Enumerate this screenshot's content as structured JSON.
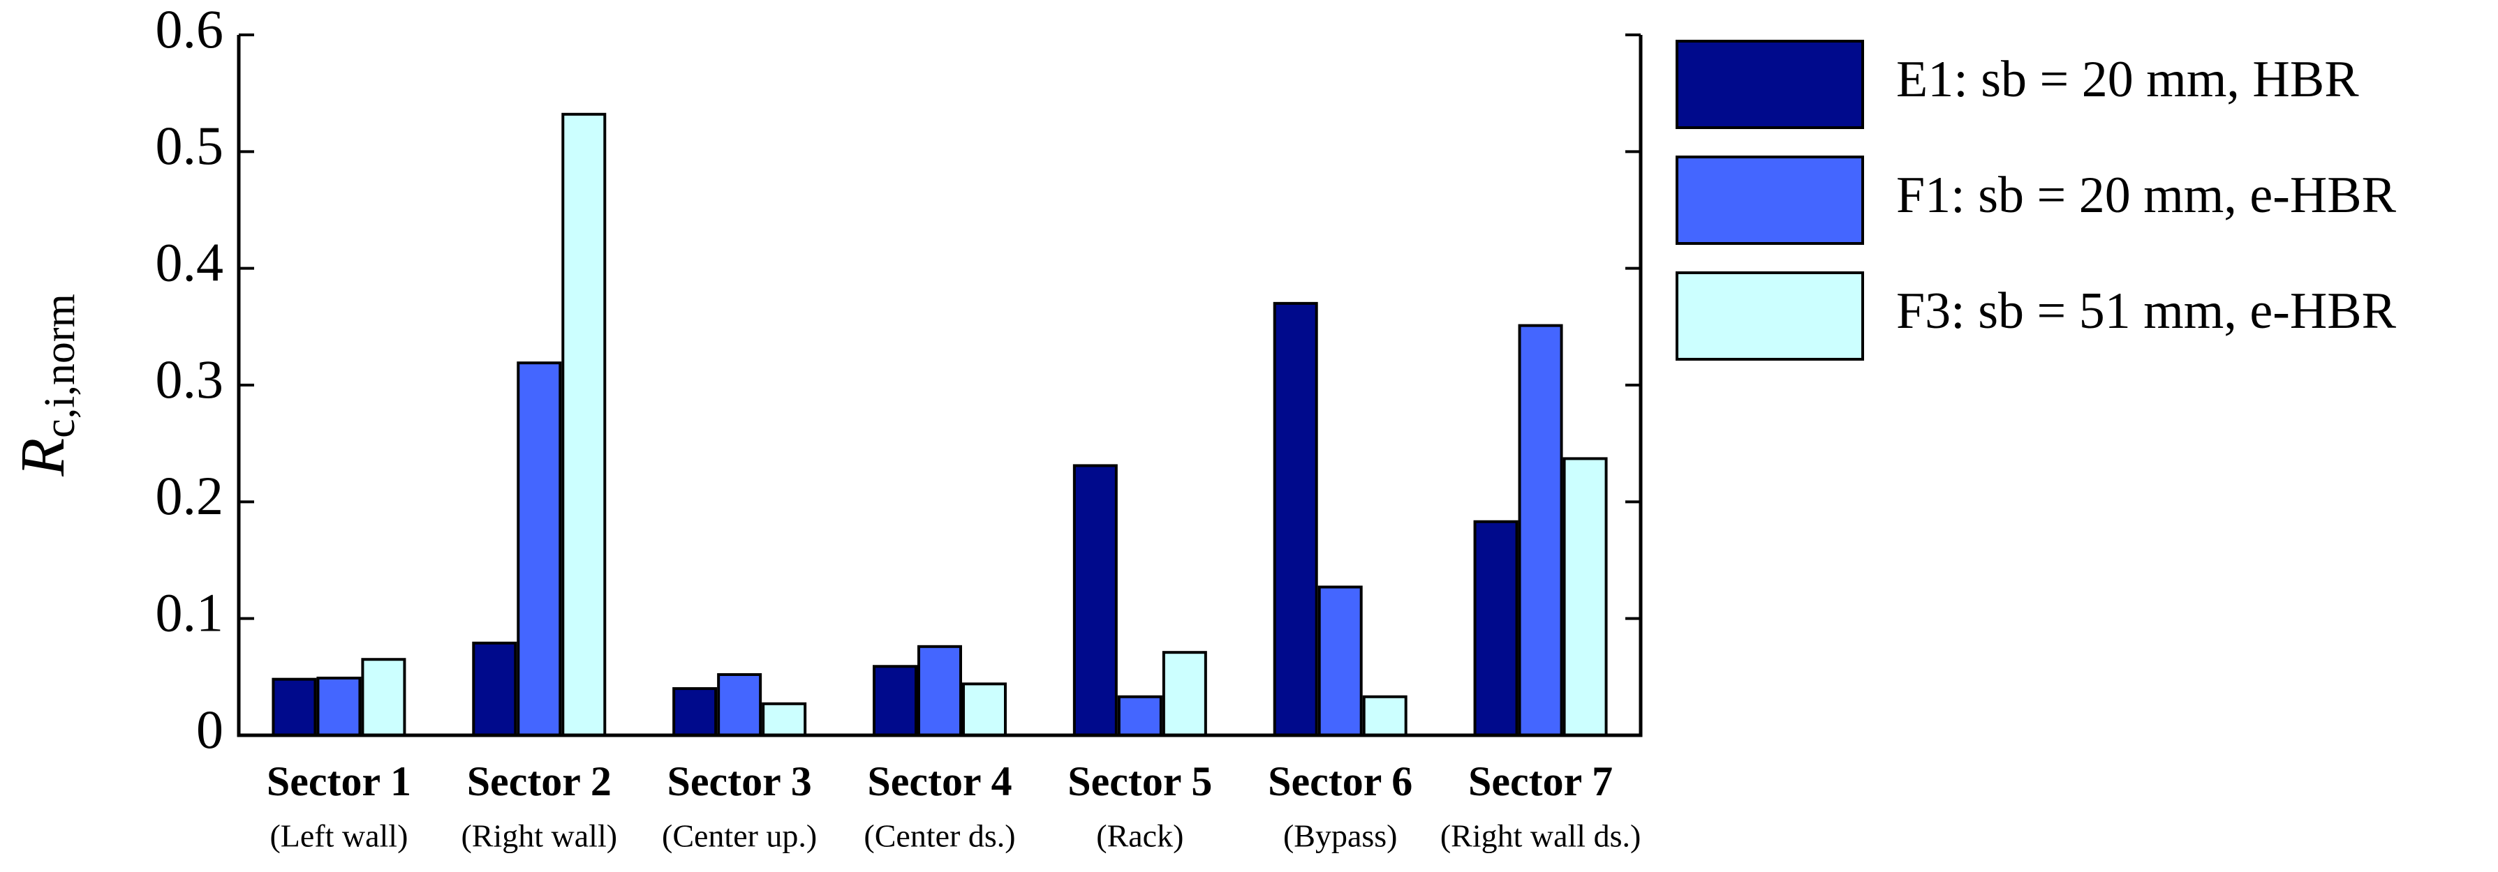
{
  "chart_data": {
    "type": "bar",
    "ylabel": {
      "symbol": "R",
      "subscript": "c,i,norm"
    },
    "categories": [
      "Sector 1",
      "Sector 2",
      "Sector 3",
      "Sector 4",
      "Sector 5",
      "Sector 6",
      "Sector 7"
    ],
    "subcategories": [
      "(Left wall)",
      "(Right wall)",
      "(Center up.)",
      "(Center ds.)",
      "(Rack)",
      "(Bypass)",
      "(Right wall ds.)"
    ],
    "series": [
      {
        "name": "E1: sb = 20 mm, HBR",
        "color": "#000a8c",
        "values": [
          0.048,
          0.079,
          0.04,
          0.059,
          0.231,
          0.37,
          0.183
        ]
      },
      {
        "name": "F1: sb = 20 mm, e-HBR",
        "color": "#4466ff",
        "values": [
          0.049,
          0.319,
          0.052,
          0.076,
          0.033,
          0.127,
          0.351
        ]
      },
      {
        "name": "F3: sb = 51 mm, e-HBR",
        "color": "#ccffff",
        "values": [
          0.065,
          0.532,
          0.027,
          0.044,
          0.071,
          0.033,
          0.237
        ]
      }
    ],
    "ylim": [
      0,
      0.6
    ],
    "yticks": [
      0,
      0.1,
      0.2,
      0.3,
      0.4,
      0.5,
      0.6
    ],
    "legend": "right"
  }
}
